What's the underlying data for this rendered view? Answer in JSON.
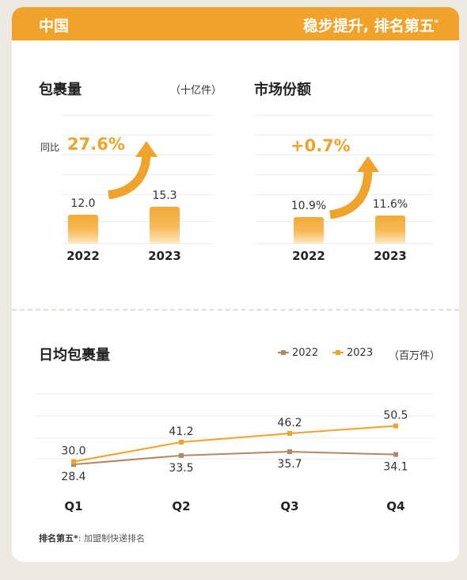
{
  "header": {
    "left": "中国",
    "right": "稳步提升, 排名第五",
    "right_mark": "*"
  },
  "parcel_panel": {
    "title": "包裹量",
    "unit": "（十亿件）",
    "growth_label": "同比",
    "growth_value": "27.6%",
    "bars": [
      {
        "year": "2022",
        "value": 12.0,
        "label": "12.0"
      },
      {
        "year": "2023",
        "value": 15.3,
        "label": "15.3"
      }
    ]
  },
  "share_panel": {
    "title": "市场份额",
    "growth_value": "+0.7%",
    "bars": [
      {
        "year": "2022",
        "value": 10.9,
        "label": "10.9%"
      },
      {
        "year": "2023",
        "value": 11.6,
        "label": "11.6%"
      }
    ]
  },
  "daily_panel": {
    "title": "日均包裹量",
    "unit": "（百万件）"
  },
  "footnote": {
    "bold": "排名第五*",
    "text": ": 加盟制快递排名"
  },
  "colors": {
    "accent": "#f0a22a",
    "series_2022": "#b08863",
    "series_2023": "#f0a22a"
  },
  "chart_data": {
    "type": "line",
    "title": "日均包裹量",
    "ylabel": "（百万件）",
    "x": [
      "Q1",
      "Q2",
      "Q3",
      "Q4"
    ],
    "ylim": [
      0,
      60
    ],
    "legend": "top-right",
    "series": [
      {
        "name": "2022",
        "values": [
          28.4,
          33.5,
          35.7,
          34.1
        ],
        "labels": [
          "28.4",
          "33.5",
          "35.7",
          "34.1"
        ],
        "color": "#b08863"
      },
      {
        "name": "2023",
        "values": [
          30.0,
          41.2,
          46.2,
          50.5
        ],
        "labels": [
          "30.0",
          "41.2",
          "46.2",
          "50.5"
        ],
        "color": "#f0a22a"
      }
    ]
  }
}
